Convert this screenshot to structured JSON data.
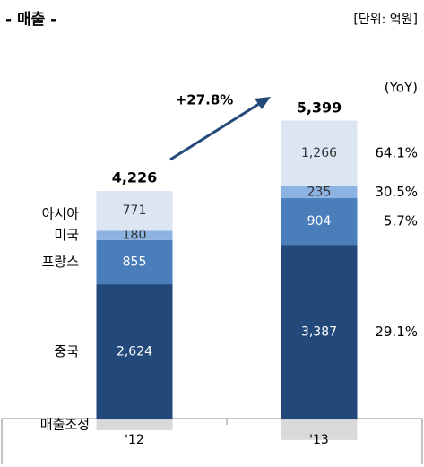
{
  "chart_data": {
    "type": "stacked_bar",
    "title": "- 매출 -",
    "unit": "[단위: 억원]",
    "categories": [
      "'12",
      "'13"
    ],
    "ylim": [
      -500,
      7000
    ],
    "series": [
      {
        "name": "중국",
        "color": "#23497b",
        "label_color": "#ffffff",
        "values": [
          2624,
          3387
        ],
        "value_labels": [
          "2,624",
          "3,387"
        ]
      },
      {
        "name": "프랑스",
        "color": "#4a7ebb",
        "label_color": "#ffffff",
        "values": [
          855,
          904
        ],
        "value_labels": [
          "855",
          "904"
        ]
      },
      {
        "name": "미국",
        "color": "#8db3e2",
        "label_color": "#333333",
        "values": [
          180,
          235
        ],
        "value_labels": [
          "180",
          "235"
        ]
      },
      {
        "name": "아시아",
        "color": "#dce6f2",
        "label_color": "#333333",
        "values": [
          771,
          1266
        ],
        "value_labels": [
          "771",
          "1,266"
        ]
      },
      {
        "name": "매출조정",
        "color": "#d9d9d9",
        "values": [
          -204,
          -393
        ]
      }
    ],
    "totals": {
      "values": [
        4226,
        5399
      ],
      "value_labels": [
        "4,226",
        "5,399"
      ]
    },
    "growth": {
      "value": 27.8,
      "label": "+27.8%",
      "color": "#23497b"
    },
    "yoy": {
      "title": "(YoY)",
      "values": [
        29.1,
        5.7,
        30.5,
        64.1
      ],
      "value_labels": [
        "29.1%",
        "5.7%",
        "30.5%",
        "64.1%"
      ]
    }
  }
}
